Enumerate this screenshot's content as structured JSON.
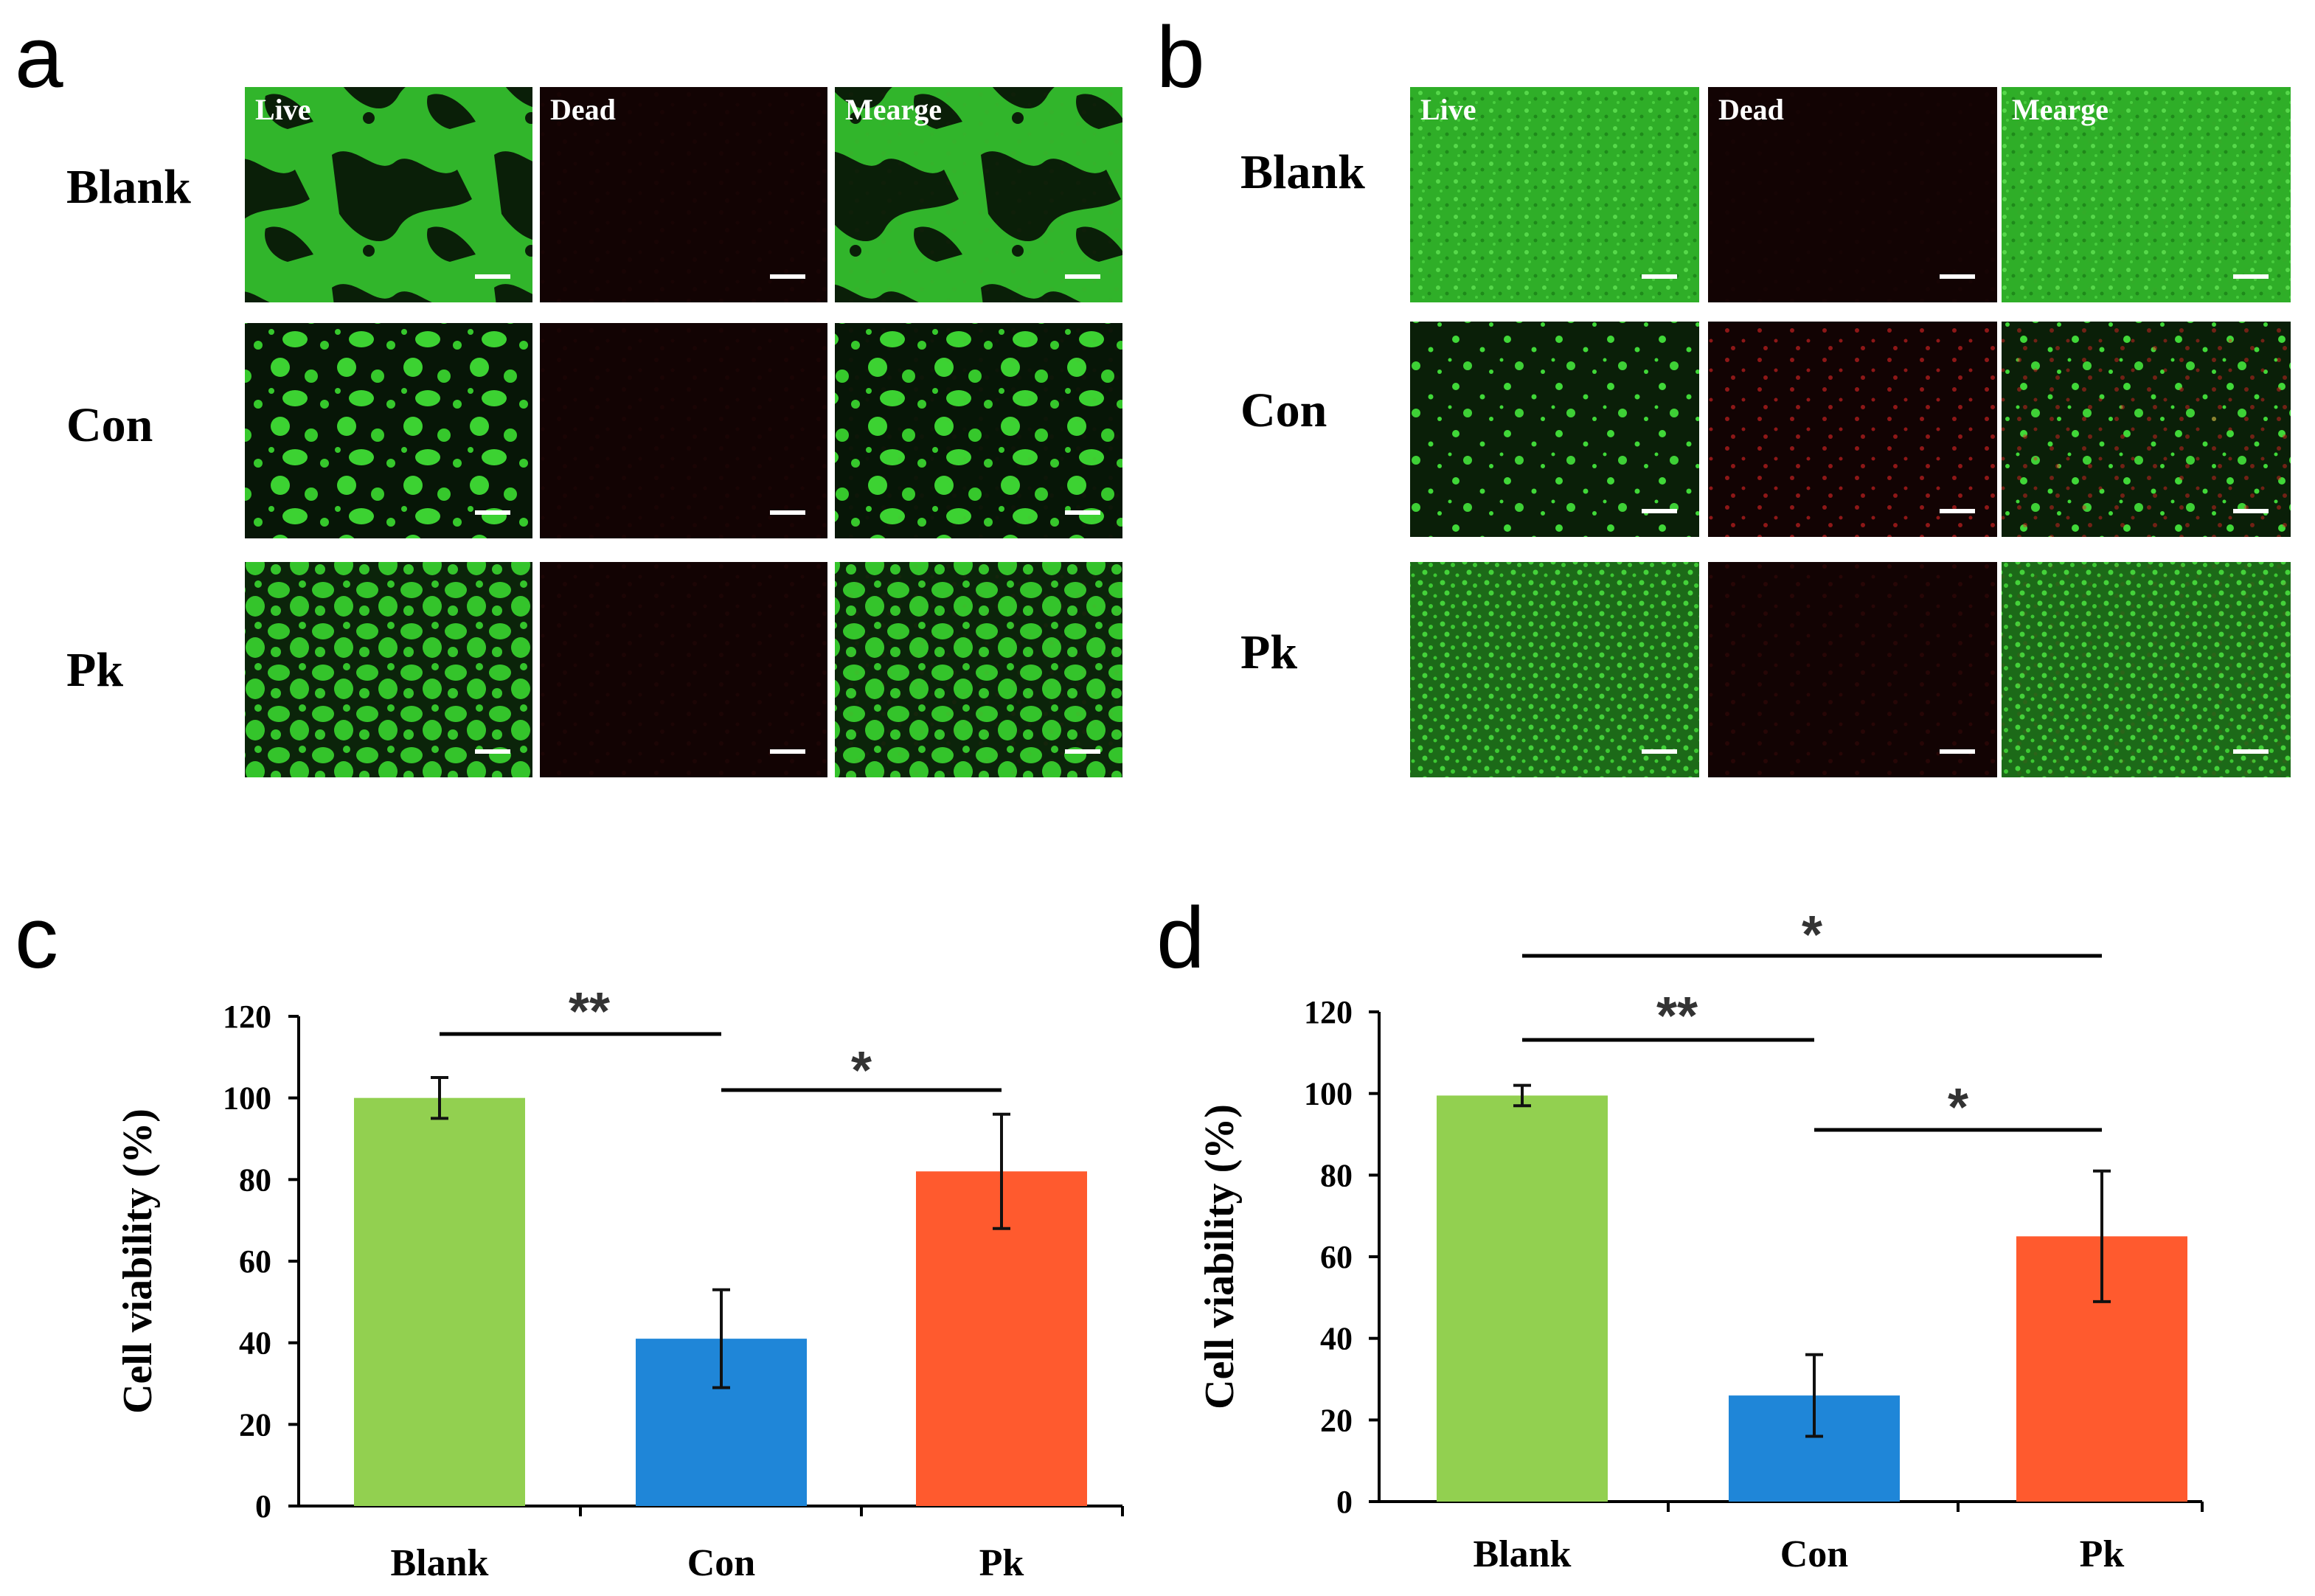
{
  "colors": {
    "live_green": "#35c02e",
    "dead_red": "#d02020",
    "bar_blank": "#92d050",
    "bar_con": "#1f86d8",
    "bar_pk": "#ff5a2e"
  },
  "panels": {
    "a": {
      "letter": "a",
      "column_labels": [
        "Live",
        "Dead",
        "Mearge"
      ],
      "rows": [
        {
          "label": "Blank",
          "live_pattern": "network",
          "dead_level": 0.03
        },
        {
          "label": "Con",
          "live_pattern": "clusters",
          "dead_level": 0.04
        },
        {
          "label": "Pk",
          "live_pattern": "dense-clusters",
          "dead_level": 0.05
        }
      ]
    },
    "b": {
      "letter": "b",
      "column_labels": [
        "Live",
        "Dead",
        "Mearge"
      ],
      "rows": [
        {
          "label": "Blank",
          "live_pattern": "confluent",
          "dead_level": 0.02
        },
        {
          "label": "Con",
          "live_pattern": "sparse",
          "dead_level": 0.6
        },
        {
          "label": "Pk",
          "live_pattern": "dense",
          "dead_level": 0.1
        }
      ]
    }
  },
  "chart_data": [
    {
      "panel": "c",
      "letter": "c",
      "type": "bar",
      "categories": [
        "Blank",
        "Con",
        "Pk"
      ],
      "values": [
        100,
        41,
        82
      ],
      "error": [
        5,
        12,
        14
      ],
      "ylabel": "Cell viability (%)",
      "ylim": [
        0,
        120
      ],
      "yticks": [
        "0",
        "20",
        "40",
        "60",
        "80",
        "100",
        "120"
      ],
      "significance": [
        {
          "from": 0,
          "to": 1,
          "label": "**"
        },
        {
          "from": 1,
          "to": 2,
          "label": "*"
        }
      ]
    },
    {
      "panel": "d",
      "letter": "d",
      "type": "bar",
      "categories": [
        "Blank",
        "Con",
        "Pk"
      ],
      "values": [
        99.5,
        26,
        65
      ],
      "error": [
        2.5,
        10,
        16
      ],
      "ylabel": "Cell viability (%)",
      "ylim": [
        0,
        120
      ],
      "yticks": [
        "0",
        "20",
        "40",
        "60",
        "80",
        "100",
        "120"
      ],
      "significance": [
        {
          "from": 0,
          "to": 2,
          "label": "*"
        },
        {
          "from": 0,
          "to": 1,
          "label": "**"
        },
        {
          "from": 1,
          "to": 2,
          "label": "*"
        }
      ]
    }
  ]
}
